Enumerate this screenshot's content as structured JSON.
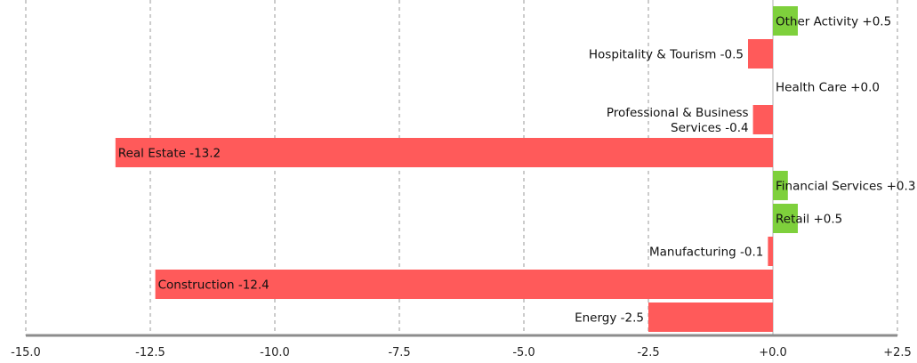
{
  "chart_data": {
    "type": "bar",
    "orientation": "horizontal",
    "title": "",
    "xlabel": "",
    "ylabel": "",
    "xlim": [
      -15,
      2.5
    ],
    "xticks": [
      -15,
      -12.5,
      -10,
      -7.5,
      -5,
      -2.5,
      0,
      2.5
    ],
    "xtick_labels": [
      "-15.0",
      "-12.5",
      "-10.0",
      "-7.5",
      "-5.0",
      "-2.5",
      "+0.0",
      "+2.5"
    ],
    "grid": "vertical dashed",
    "legend": "none",
    "colors": {
      "positive": "#7ed03c",
      "negative": "#ff5a5a"
    },
    "categories": [
      "Other Activity",
      "Hospitality & Tourism",
      "Health Care",
      "Professional & Business Services",
      "Real Estate",
      "Financial Services",
      "Retail",
      "Manufacturing",
      "Construction",
      "Energy"
    ],
    "values": [
      0.5,
      -0.5,
      0.0,
      -0.4,
      -13.2,
      0.3,
      0.5,
      -0.1,
      -12.4,
      -2.5
    ],
    "labels": [
      [
        "Other Activity +0.5"
      ],
      [
        "Hospitality & Tourism -0.5"
      ],
      [
        "Health Care +0.0"
      ],
      [
        "Professional & Business",
        "Services -0.4"
      ],
      [
        "Real Estate -13.2"
      ],
      [
        "Financial Services +0.3"
      ],
      [
        "Retail +0.5"
      ],
      [
        "Manufacturing -0.1"
      ],
      [
        "Construction -12.4"
      ],
      [
        "Energy -2.5"
      ]
    ]
  }
}
